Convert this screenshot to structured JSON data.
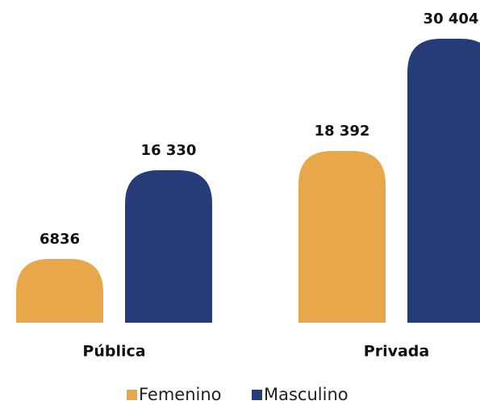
{
  "chart_data": {
    "type": "bar",
    "categories": [
      "Pública",
      "Privada"
    ],
    "series": [
      {
        "name": "Femenino",
        "color": "#e8a84a",
        "values": [
          6836,
          18392
        ],
        "value_labels": [
          "6836",
          "18 392"
        ]
      },
      {
        "name": "Masculino",
        "color": "#253c78",
        "values": [
          16330,
          30404
        ],
        "value_labels": [
          "16 330",
          "30 404"
        ]
      }
    ]
  }
}
